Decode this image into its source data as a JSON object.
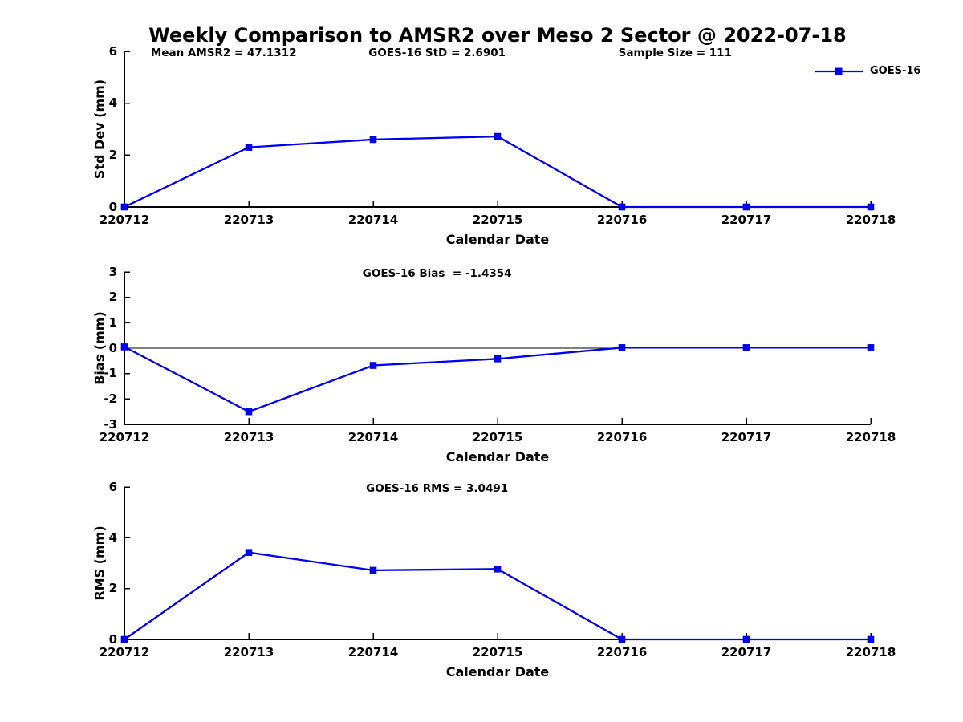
{
  "title": "Weekly Comparison to AMSR2 over Meso 2 Sector @ 2022-07-18",
  "legend": {
    "label": "GOES-16"
  },
  "colors": {
    "line": "#0000EE",
    "axis": "#000000",
    "text": "#000000",
    "background": "#FFFFFF"
  },
  "chart_data": [
    {
      "type": "line",
      "id": "std-dev",
      "annotations": [
        "Mean AMSR2 = 47.1312",
        "GOES-16 StD = 2.6901",
        "Sample Size = 111"
      ],
      "categories": [
        "220712",
        "220713",
        "220714",
        "220715",
        "220716",
        "220717",
        "220718"
      ],
      "series": [
        {
          "name": "GOES-16",
          "values": [
            0,
            2.3,
            2.6,
            2.72,
            0,
            0,
            0
          ]
        }
      ],
      "xlabel": "Calendar Date",
      "ylabel": "Std Dev (mm)",
      "ylim": [
        0,
        6
      ],
      "yticks": [
        0,
        2,
        4,
        6
      ],
      "grid": false,
      "legend_position": "top-right"
    },
    {
      "type": "line",
      "id": "bias",
      "annotations": [
        "GOES-16 Bias  = -1.4354"
      ],
      "categories": [
        "220712",
        "220713",
        "220714",
        "220715",
        "220716",
        "220717",
        "220718"
      ],
      "series": [
        {
          "name": "GOES-16",
          "values": [
            0.05,
            -2.5,
            -0.68,
            -0.42,
            0.02,
            0.02,
            0.02
          ]
        }
      ],
      "xlabel": "Calendar Date",
      "ylabel": "Bias (mm)",
      "ylim": [
        -3,
        3
      ],
      "yticks": [
        -3,
        -2,
        -1,
        0,
        1,
        2,
        3
      ],
      "zero_line": true,
      "grid": false
    },
    {
      "type": "line",
      "id": "rms",
      "annotations": [
        "GOES-16 RMS = 3.0491"
      ],
      "categories": [
        "220712",
        "220713",
        "220714",
        "220715",
        "220716",
        "220717",
        "220718"
      ],
      "series": [
        {
          "name": "GOES-16",
          "values": [
            0,
            3.42,
            2.72,
            2.77,
            0,
            0,
            0
          ]
        }
      ],
      "xlabel": "Calendar Date",
      "ylabel": "RMS (mm)",
      "ylim": [
        0,
        6
      ],
      "yticks": [
        0,
        2,
        4,
        6
      ],
      "grid": false
    }
  ]
}
